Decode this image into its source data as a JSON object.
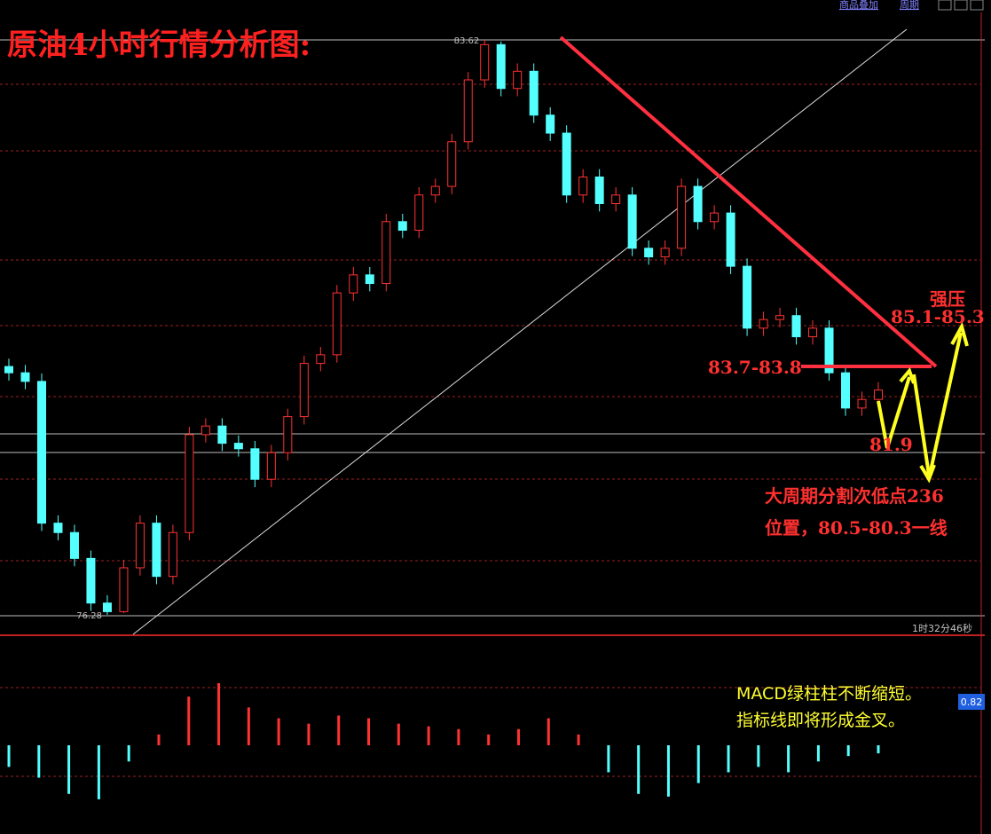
{
  "toolbar": [
    "商品叠加",
    "周期"
  ],
  "clock": "1时32分46秒",
  "chart_data": [
    {
      "type": "candlestick",
      "title": "原油4小时行情分析图:",
      "up_color": "#ff3232",
      "down_color": "#54ffff",
      "ylim": [
        76.03,
        83.79
      ],
      "open": [
        79.45,
        79.37,
        79.26,
        77.45,
        77.33,
        77.0,
        76.43,
        76.32,
        76.88,
        77.45,
        76.77,
        77.33,
        78.58,
        78.69,
        78.47,
        78.4,
        78.01,
        78.35,
        78.81,
        79.49,
        79.6,
        80.39,
        80.62,
        80.51,
        81.3,
        81.19,
        81.64,
        81.75,
        82.32,
        83.11,
        83.56,
        83.0,
        83.22,
        82.66,
        82.43,
        81.64,
        81.87,
        81.53,
        81.64,
        80.96,
        80.85,
        80.96,
        81.75,
        81.3,
        81.41,
        80.73,
        79.94,
        80.05,
        80.1,
        79.83,
        79.94,
        79.37,
        78.92,
        79.03
      ],
      "high": [
        79.55,
        79.47,
        79.36,
        77.55,
        77.43,
        77.1,
        76.53,
        76.98,
        77.55,
        77.55,
        77.43,
        78.68,
        78.79,
        78.79,
        78.57,
        78.5,
        78.45,
        78.91,
        79.59,
        79.7,
        80.49,
        80.72,
        80.72,
        81.4,
        81.4,
        81.74,
        81.85,
        82.42,
        83.21,
        83.62,
        83.6,
        83.32,
        83.32,
        82.76,
        82.53,
        81.97,
        81.97,
        81.74,
        81.74,
        81.06,
        81.06,
        81.85,
        81.85,
        81.51,
        81.51,
        80.83,
        80.15,
        80.2,
        80.2,
        80.04,
        80.04,
        79.47,
        79.13,
        79.25
      ],
      "low": [
        79.27,
        79.16,
        77.35,
        77.23,
        76.9,
        76.33,
        76.28,
        76.3,
        76.78,
        76.67,
        76.67,
        77.23,
        78.48,
        78.37,
        78.3,
        77.91,
        77.91,
        78.25,
        78.71,
        79.39,
        79.5,
        80.29,
        80.41,
        80.41,
        81.09,
        81.09,
        81.54,
        81.65,
        82.22,
        83.01,
        82.9,
        82.9,
        82.56,
        82.33,
        81.54,
        81.54,
        81.43,
        81.43,
        80.86,
        80.75,
        80.75,
        80.86,
        81.2,
        81.2,
        80.63,
        79.84,
        79.84,
        79.95,
        79.73,
        79.73,
        79.27,
        78.82,
        78.82,
        78.93
      ],
      "close": [
        79.37,
        79.26,
        77.45,
        77.33,
        77.0,
        76.43,
        76.32,
        76.88,
        77.45,
        76.77,
        77.33,
        78.58,
        78.69,
        78.47,
        78.4,
        78.01,
        78.35,
        78.81,
        79.49,
        79.6,
        80.39,
        80.62,
        80.51,
        81.3,
        81.19,
        81.64,
        81.75,
        82.32,
        83.11,
        83.56,
        83.0,
        83.22,
        82.66,
        82.43,
        81.64,
        81.87,
        81.53,
        81.64,
        80.96,
        80.85,
        80.96,
        81.75,
        81.3,
        81.41,
        80.73,
        79.94,
        80.05,
        80.1,
        79.83,
        79.94,
        79.37,
        78.92,
        79.03,
        79.15
      ],
      "annotations": [
        "强压",
        "85.1-85.3",
        "83.7-83.8",
        "81.9",
        "大周期分割次低点236",
        "位置，80.5-80.3一线"
      ]
    },
    {
      "type": "bar",
      "up_color": "#ff3232",
      "down_color": "#54ffff",
      "ylim": [
        -1.56,
        1.97
      ],
      "last_value": 0.82,
      "values": [
        -0.4,
        -0.6,
        -0.9,
        -1.0,
        -0.3,
        0.2,
        0.9,
        1.15,
        0.7,
        0.5,
        0.4,
        0.55,
        0.5,
        0.4,
        0.35,
        0.3,
        0.2,
        0.3,
        0.5,
        0.2,
        -0.5,
        -0.9,
        -0.95,
        -0.7,
        -0.5,
        -0.4,
        -0.5,
        -0.3,
        -0.2,
        -0.15
      ],
      "annotations": [
        "MACD绿柱柱不断缩短。",
        "指标线即将形成金叉。"
      ]
    }
  ]
}
